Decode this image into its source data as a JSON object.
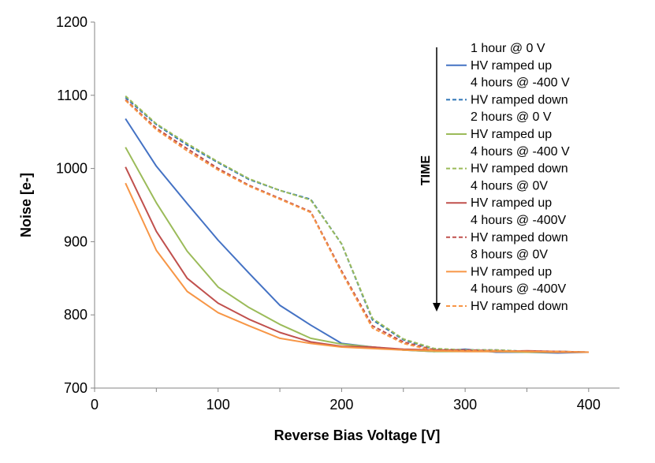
{
  "chart_data": {
    "type": "line",
    "title": "",
    "xlabel": "Reverse Bias Voltage [V]",
    "ylabel": "Noise [e-]",
    "xlim": [
      0,
      425
    ],
    "ylim": [
      700,
      1200
    ],
    "xticks": [
      0,
      100,
      200,
      300,
      400
    ],
    "yticks": [
      700,
      800,
      900,
      1000,
      1100,
      1200
    ],
    "grid": false,
    "legend_position": "top-right",
    "time_annotation": "TIME",
    "x": [
      25,
      50,
      75,
      100,
      125,
      150,
      175,
      200,
      225,
      250,
      275,
      300,
      325,
      350,
      375,
      400
    ],
    "series": [
      {
        "name": "HV ramped up",
        "group": "1 hour @ 0 V",
        "color": "#4472C4",
        "dash": false,
        "values": [
          1068,
          1003,
          952,
          902,
          857,
          813,
          786,
          761,
          756,
          752,
          750,
          753,
          749,
          749,
          748,
          749
        ]
      },
      {
        "name": "HV ramped down",
        "group": "4 hours @ -400 V",
        "color": "#2E75B6",
        "dash": true,
        "values": [
          1097,
          1060,
          1032,
          1008,
          985,
          970,
          958,
          897,
          793,
          766,
          753,
          752,
          752,
          750,
          750,
          749
        ]
      },
      {
        "name": "HV ramped up",
        "group": "2 hours @ 0 V",
        "color": "#9BBB59",
        "dash": false,
        "values": [
          1029,
          953,
          887,
          838,
          810,
          787,
          768,
          760,
          756,
          752,
          750,
          750,
          750,
          749,
          749,
          749
        ]
      },
      {
        "name": "HV ramped down",
        "group": "4 hours @ -400 V",
        "color": "#9BBB59",
        "dash": true,
        "values": [
          1099,
          1061,
          1034,
          1009,
          986,
          970,
          957,
          897,
          795,
          767,
          754,
          752,
          752,
          750,
          750,
          749
        ]
      },
      {
        "name": "HV ramped up",
        "group": "4 hours @ 0V",
        "color": "#C0504D",
        "dash": false,
        "values": [
          1002,
          914,
          850,
          816,
          794,
          776,
          763,
          757,
          756,
          753,
          752,
          751,
          750,
          751,
          750,
          749
        ]
      },
      {
        "name": "HV ramped down",
        "group": "4 hours @ -400V",
        "color": "#C0504D",
        "dash": true,
        "values": [
          1094,
          1055,
          1027,
          1000,
          977,
          959,
          941,
          860,
          785,
          763,
          752,
          752,
          751,
          750,
          750,
          749
        ]
      },
      {
        "name": "HV ramped up",
        "group": "8 hours @ 0V",
        "color": "#F79646",
        "dash": false,
        "values": [
          980,
          888,
          832,
          803,
          785,
          768,
          761,
          756,
          754,
          752,
          751,
          750,
          750,
          750,
          749,
          749
        ]
      },
      {
        "name": "HV ramped down",
        "group": "4 hours @ -400V",
        "color": "#F79646",
        "dash": true,
        "values": [
          1093,
          1053,
          1024,
          998,
          976,
          958,
          940,
          858,
          782,
          761,
          751,
          751,
          751,
          750,
          750,
          749
        ]
      }
    ],
    "legend_entries": [
      {
        "text": "1 hour @ 0 V",
        "series": null
      },
      {
        "text": "HV ramped up",
        "series": 0
      },
      {
        "text": "4 hours @ -400 V",
        "series": null
      },
      {
        "text": "HV ramped down",
        "series": 1
      },
      {
        "text": "2 hours @ 0 V",
        "series": null
      },
      {
        "text": "HV ramped up",
        "series": 2
      },
      {
        "text": "4 hours @ -400 V",
        "series": null
      },
      {
        "text": "HV ramped down",
        "series": 3
      },
      {
        "text": "4 hours @ 0V",
        "series": null
      },
      {
        "text": "HV ramped up",
        "series": 4
      },
      {
        "text": "4 hours @ -400V",
        "series": null
      },
      {
        "text": "HV ramped down",
        "series": 5
      },
      {
        "text": "8 hours @ 0V",
        "series": null
      },
      {
        "text": "HV ramped up",
        "series": 6
      },
      {
        "text": "4 hours @ -400V",
        "series": null
      },
      {
        "text": "HV ramped down",
        "series": 7
      }
    ]
  }
}
